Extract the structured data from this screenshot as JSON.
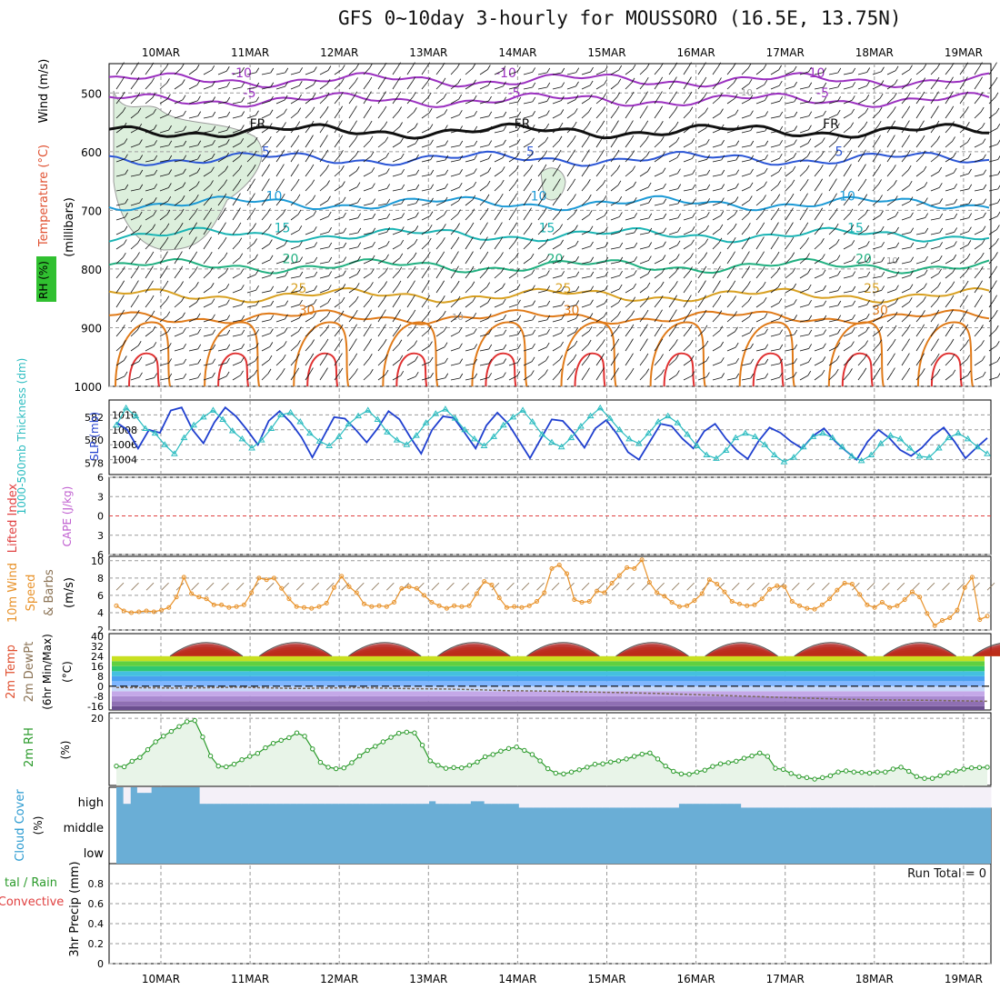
{
  "title": "GFS 0~10day 3-hourly for MOUSSORO (16.5E, 13.75N)",
  "date_labels": [
    "10MAR",
    "11MAR",
    "12MAR",
    "13MAR",
    "14MAR",
    "15MAR",
    "16MAR",
    "17MAR",
    "18MAR",
    "19MAR"
  ],
  "colors": {
    "grid": "#9a9a9a",
    "wind_barb": "#111111",
    "isotherm_cold": "#9b30c0",
    "isotherm_freezing": "#111111",
    "isotherm_5": "#2a55d6",
    "isotherm_10": "#1c9ad6",
    "isotherm_15": "#1ab4b4",
    "isotherm_20": "#20b080",
    "isotherm_25": "#d8a020",
    "isotherm_30": "#e07a18",
    "isotherm_35": "#e03030",
    "rh_fill": "#dcefdc",
    "slp_line": "#1f3fcf",
    "thickness_line": "#2bbcc0",
    "lifted_index_zero": "#e04040",
    "wind10m_line": "#e8922a",
    "rh2m_line": "#2a9a2a",
    "rh2m_fill": "#e8f4e8",
    "cloud": "#6aaed6",
    "cloud_clear": "#f4f0f8",
    "run_total_text": "#111111"
  },
  "labels": {
    "upper_wind": "Wind (m/s)",
    "upper_temp": "Temperature (°C)",
    "upper_rh": "RH (%)",
    "upper_axis": "(millibars)",
    "slp": "SLP (mb)",
    "thickness": "1000-500mb Thickness (dm)",
    "lifted_index": "Lifted Index",
    "cape": "CAPE (J/kg)",
    "wind10m_a": "10m Wind",
    "wind10m_b": "Speed",
    "wind10m_c": "& Barbs",
    "wind10m_unit": "(m/s)",
    "temp2m_a": "2m Temp",
    "temp2m_b": "2m DewPt",
    "temp2m_c": "(6hr Min/Max)",
    "temp2m_unit": "(°C)",
    "rh2m": "2m RH",
    "rh2m_unit": "(%)",
    "cloud": "Cloud Cover",
    "cloud_unit": "(%)",
    "precip_a": "tal / Rain",
    "precip_b": "Convective",
    "precip_axis": "3hr Precip (mm)",
    "run_total": "Run Total = 0"
  },
  "chart_data": [
    {
      "type": "line",
      "name": "upper_air_temperature",
      "ylim": [
        1000,
        450
      ],
      "yticks": [
        1000,
        900,
        800,
        700,
        600,
        500
      ],
      "isotherm_labels": [
        "-10",
        "-5",
        "FR",
        "5",
        "10",
        "15",
        "20",
        "25",
        "30"
      ],
      "isotherm_levels_mb": {
        "-10": 478,
        "-5": 512,
        "FR": 565,
        "5": 612,
        "10": 688,
        "15": 742,
        "20": 795,
        "25": 845,
        "30": 882
      },
      "rh_contour_labels": [
        "10",
        "10",
        "10"
      ]
    },
    {
      "type": "line",
      "name": "slp_thickness",
      "slp_yticks": [
        1010,
        1008,
        1006,
        1004
      ],
      "slp_ylim": [
        1002,
        1012
      ],
      "thickness_yticks": [
        582,
        580,
        578
      ],
      "thickness_ylim": [
        577,
        583.5
      ],
      "slp": [
        1009,
        1008,
        1005.5,
        1008,
        1007.6,
        1010.6,
        1011,
        1008,
        1006.2,
        1009,
        1011,
        1009.8,
        1008,
        1006,
        1009.2,
        1010.5,
        1009,
        1007,
        1004.3,
        1007,
        1009.7,
        1009.5,
        1008,
        1006.3,
        1008.2,
        1010.5,
        1009.4,
        1007,
        1004.8,
        1008,
        1009.8,
        1009.6,
        1007.6,
        1005.5,
        1008.6,
        1010.3,
        1008.8,
        1006.5,
        1004.2,
        1006.8,
        1009.4,
        1009.2,
        1007.6,
        1005.6,
        1008.2,
        1009.3,
        1007.4,
        1005,
        1004,
        1006.4,
        1008.8,
        1008.5,
        1006.8,
        1005.5,
        1007.8,
        1008.8,
        1006.8,
        1005.2,
        1004.1,
        1006.5,
        1008.3,
        1007.6,
        1006.4,
        1005.5,
        1007.2,
        1008.2,
        1006.5,
        1005.2,
        1004,
        1006.4,
        1008,
        1006.9,
        1005.3,
        1004.5,
        1005.6,
        1007.2,
        1008.3,
        1006.4,
        1004.2,
        1005.6,
        1006.9
      ],
      "thickness": [
        581.3,
        582.8,
        582.1,
        581,
        580.6,
        579.6,
        578.8,
        580.2,
        581.3,
        582,
        582.6,
        581.8,
        580.8,
        580.1,
        579.3,
        580,
        581,
        582.2,
        582.4,
        581.6,
        580.6,
        579.9,
        579.5,
        580.3,
        581.4,
        582.1,
        582.6,
        581.8,
        580.7,
        580,
        579.6,
        580.4,
        581.5,
        582.3,
        582.7,
        581.9,
        580.9,
        580.1,
        579.5,
        580.3,
        581.3,
        582,
        582.6,
        581.6,
        580.5,
        579.8,
        579.4,
        580.2,
        581.2,
        582.1,
        582.8,
        581.9,
        580.9,
        580.1,
        579.7,
        580.6,
        581.6,
        582.1,
        581.5,
        580.5,
        579.5,
        578.7,
        578.4,
        579.1,
        580.2,
        580.6,
        580.3,
        579.6,
        578.7,
        578.1,
        578.5,
        579.4,
        580.3,
        580.6,
        580.2,
        579.4,
        578.6,
        578.2,
        578.7,
        579.7,
        580.4,
        580.1,
        579.3,
        578.6,
        578.5,
        579.3,
        580.2,
        580.6,
        580.1,
        579.4,
        578.8
      ]
    },
    {
      "type": "line",
      "name": "lifted_index_cape",
      "yticks": [
        -6,
        -3,
        0,
        3,
        6
      ],
      "ylim": [
        6,
        -6
      ],
      "lifted_index": [],
      "cape": []
    },
    {
      "type": "line",
      "name": "wind10m",
      "yticks": [
        2,
        4,
        6,
        8,
        10
      ],
      "ylim": [
        2,
        10.5
      ],
      "values": [
        4.8,
        4.2,
        4,
        4.1,
        4.2,
        4.1,
        4.3,
        4.6,
        5.8,
        8.1,
        6.2,
        5.8,
        5.6,
        4.9,
        4.9,
        4.6,
        4.7,
        4.9,
        6.3,
        8,
        7.8,
        8,
        6.8,
        5.6,
        4.7,
        4.6,
        4.5,
        4.7,
        5.1,
        6.9,
        8.2,
        7,
        6.3,
        5,
        4.7,
        4.8,
        4.7,
        5.2,
        6.8,
        7,
        6.8,
        6,
        5.2,
        4.8,
        4.5,
        4.8,
        4.7,
        4.8,
        6.2,
        7.6,
        7.2,
        5.7,
        4.6,
        4.7,
        4.6,
        4.8,
        5.3,
        6.3,
        9.1,
        9.5,
        8.5,
        5.5,
        5.2,
        5.3,
        6.5,
        6.3,
        7.4,
        8.3,
        9.2,
        9.1,
        10.1,
        7.5,
        6.3,
        5.9,
        5.2,
        4.7,
        4.8,
        5.4,
        6.2,
        7.8,
        7.3,
        6.4,
        5.3,
        5,
        4.8,
        4.9,
        5.6,
        6.7,
        7.1,
        7,
        5.3,
        4.8,
        4.5,
        4.4,
        4.9,
        5.6,
        6.6,
        7.4,
        7.3,
        6.1,
        4.9,
        4.6,
        5.2,
        4.6,
        4.8,
        5.5,
        6.4,
        5.8,
        3.9,
        2.5,
        3.1,
        3.4,
        4.3,
        6.9,
        8.1,
        3.2,
        3.6
      ]
    },
    {
      "type": "area",
      "name": "temp2m_dewpt",
      "yticks": [
        40,
        32,
        24,
        16,
        8,
        0,
        -8,
        -16
      ],
      "ylim": [
        -19,
        42
      ],
      "temp_min": 25,
      "temp_max": 40,
      "dewpoint": [
        -1,
        -1.2,
        -1.5,
        -1.2,
        -0.8,
        -1.3,
        -1.8,
        -1.4,
        -1.1,
        -1.6,
        -2,
        -2.2,
        -2.8,
        -3.5,
        -3.8,
        -4.2,
        -4.8,
        -5.2,
        -5.8,
        -6.5,
        -7.2,
        -8,
        -8.8,
        -9.5,
        -10.2,
        -10.8,
        -11,
        -11.2,
        -11.6,
        -12
      ]
    },
    {
      "type": "area",
      "name": "rh2m",
      "yticks": [
        20
      ],
      "ylim": [
        2,
        21.5
      ],
      "values": [
        7.2,
        7,
        8.5,
        9.5,
        11.6,
        13.7,
        15.2,
        16.5,
        17.8,
        19.1,
        19.4,
        15,
        9.9,
        7.2,
        7,
        7.7,
        8.9,
        9.8,
        10.6,
        12.1,
        13.3,
        14.1,
        14.8,
        16.1,
        15.2,
        11.8,
        8.2,
        6.9,
        6.5,
        6.7,
        8.1,
        9.9,
        11.4,
        12.5,
        13.7,
        14.9,
        16,
        16.3,
        16.1,
        12.8,
        8.6,
        7.4,
        6.6,
        6.8,
        6.7,
        7.4,
        8.3,
        9.7,
        10.3,
        11.2,
        11.9,
        12.3,
        11.4,
        10.3,
        8.6,
        6.5,
        5.3,
        5.1,
        5.6,
        6.2,
        6.9,
        7.7,
        7.8,
        8.3,
        8.6,
        9.1,
        9.8,
        10.4,
        10.7,
        9.1,
        7.2,
        5.8,
        5.1,
        5,
        5.6,
        6.1,
        7.1,
        7.8,
        8.1,
        8.5,
        9.3,
        9.9,
        10.7,
        9.8,
        6.6,
        6.3,
        5.2,
        4.4,
        4.1,
        3.7,
        4.1,
        4.6,
        5.6,
        5.9,
        5.6,
        5.5,
        5.3,
        5.6,
        5.6,
        6.4,
        6.9,
        5.8,
        4.4,
        3.9,
        3.9,
        4.6,
        5.4,
        5.9,
        6.4,
        6.7,
        6.8,
        6.9
      ]
    },
    {
      "type": "bar",
      "name": "cloud_cover",
      "yticks": [
        "high",
        "middle",
        "low"
      ],
      "low_pct": 100,
      "middle_pct": 100,
      "high_pct": [
        100,
        35,
        100,
        78,
        78,
        100,
        100,
        100,
        100,
        100,
        100,
        100,
        35,
        35,
        35,
        35,
        35,
        35,
        35,
        35,
        35,
        35,
        35,
        35,
        35,
        35,
        35,
        35,
        35,
        35,
        35,
        35,
        35,
        35,
        35,
        35,
        35,
        35,
        35,
        35,
        35,
        35,
        35,
        35,
        35,
        45,
        35,
        35,
        35,
        35,
        35,
        45,
        45,
        35,
        35,
        35,
        35,
        35,
        20,
        20,
        20,
        20,
        20,
        20,
        20,
        20,
        20,
        20,
        20,
        20,
        20,
        20,
        20,
        20,
        20,
        20,
        20,
        20,
        20,
        20,
        20,
        35,
        35,
        35,
        35,
        35,
        35,
        35,
        35,
        35,
        20,
        20,
        20,
        20,
        20,
        20,
        20,
        20,
        20,
        20,
        20,
        20,
        20,
        20,
        20,
        20,
        20,
        20,
        20,
        20,
        20,
        20,
        20,
        20,
        20,
        20,
        20,
        20,
        20,
        20,
        20,
        20,
        20,
        20,
        20,
        20
      ]
    },
    {
      "type": "bar",
      "name": "precip",
      "yticks": [
        0,
        0.2,
        0.4,
        0.6,
        0.8
      ],
      "ylim": [
        0,
        1
      ],
      "total": [],
      "rain": [],
      "convective": []
    }
  ]
}
